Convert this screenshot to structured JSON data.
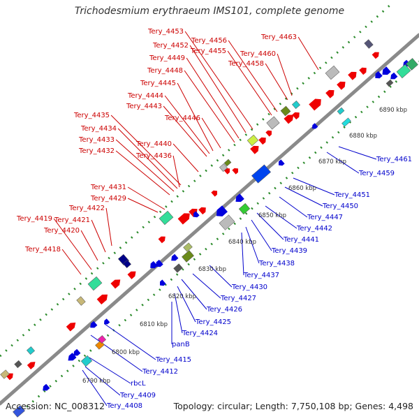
{
  "title": "Trichodesmium erythraeum IMS101, complete genome",
  "footer": {
    "accession": "Accession: NC_008312",
    "summary": "Topology: circular; Length: 7,750,108 bp; Genes: 4,498"
  },
  "colors": {
    "forward_label": "#cc0000",
    "reverse_label": "#0000cc",
    "forward_gene": "#ee0000",
    "reverse_gene": "#0000dd",
    "backbone": "#888888",
    "tick_dots": "#2a8a2a"
  },
  "scale_ticks": [
    {
      "text": "6790 kbp"
    },
    {
      "text": "6800 kbp"
    },
    {
      "text": "6810 kbp"
    },
    {
      "text": "6820 kbp"
    },
    {
      "text": "6830 kbp"
    },
    {
      "text": "6840 kbp"
    },
    {
      "text": "6850 kbp"
    },
    {
      "text": "6860 kbp"
    },
    {
      "text": "6870 kbp"
    },
    {
      "text": "6880 kbp"
    },
    {
      "text": "6890 kbp"
    }
  ],
  "forward_labels": [
    "Tery_4453",
    "Tery_4456",
    "Tery_4463",
    "Tery_4452",
    "Tery_4455",
    "Tery_4460",
    "Tery_4449",
    "Tery_4458",
    "Tery_4448",
    "Tery_4445",
    "Tery_4444",
    "Tery_4443",
    "Tery_4446",
    "Tery_4435",
    "Tery_4434",
    "Tery_4433",
    "Tery_4440",
    "Tery_4432",
    "Tery_4436",
    "Tery_4431",
    "Tery_4429",
    "Tery_4422",
    "Tery_4419",
    "Tery_4421",
    "Tery_4420",
    "Tery_4418"
  ],
  "reverse_labels": [
    "Tery_4461",
    "Tery_4459",
    "Tery_4451",
    "Tery_4450",
    "Tery_4447",
    "Tery_4442",
    "Tery_4441",
    "Tery_4439",
    "Tery_4438",
    "Tery_4437",
    "Tery_4430",
    "Tery_4427",
    "Tery_4426",
    "Tery_4425",
    "Tery_4424",
    "panB",
    "Tery_4415",
    "Tery_4412",
    "rbcL",
    "Tery_4409",
    "Tery_4408"
  ]
}
